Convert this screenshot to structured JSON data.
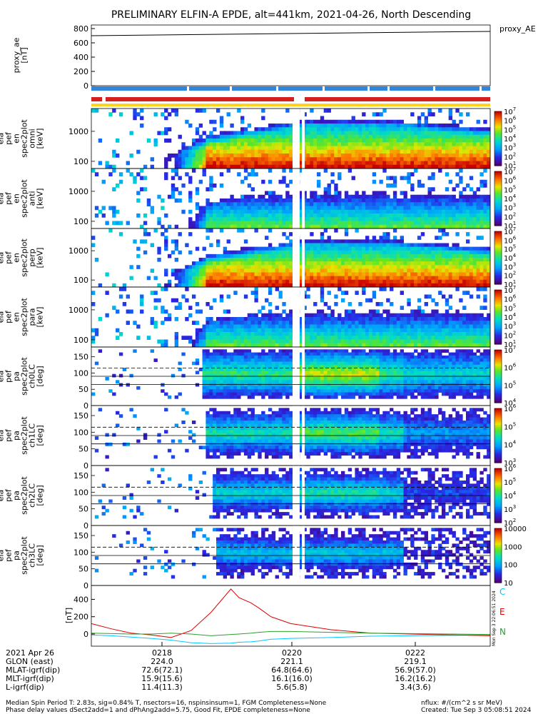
{
  "title": "PRELIMINARY ELFIN-A EPDE, alt=441km, 2021-04-26, North Descending",
  "colors": {
    "fgm_blue": "#2e86de",
    "epd_red": "#d62020",
    "epd_yellow": "#ffd21e",
    "comp_C": "#00c8ff",
    "comp_E": "#e00000",
    "comp_N": "#2ca02c"
  },
  "chart_data": [
    {
      "type": "line",
      "panel": "proxy_ae",
      "ylabel_lines": [
        "proxy_ae",
        "[nT]"
      ],
      "right_label": "proxy_AE",
      "yticks": [
        "800",
        "600",
        "400",
        "200",
        "0"
      ],
      "ylim": [
        0,
        850
      ],
      "x": [
        "02:16.5",
        "02:23.0"
      ],
      "series": [
        {
          "values": [
            700,
            760
          ]
        }
      ]
    },
    {
      "type": "heatmap",
      "panel": "en_spec2plot_omni",
      "ylabel_lines": [
        "ela",
        "pef",
        "en",
        "spec2plot",
        "omni",
        "[keV]"
      ],
      "yticks": [
        "1000",
        "100"
      ],
      "yscale": "log",
      "colorbar_label": "nflux",
      "colorbar_ticks": [
        "10^7",
        "10^6",
        "10^5",
        "10^4",
        "10^3",
        "10^2",
        "10^1"
      ]
    },
    {
      "type": "heatmap",
      "panel": "en_spec2plot_anti",
      "ylabel_lines": [
        "ela",
        "pef",
        "en",
        "spec2plot",
        "anti",
        "[keV]"
      ],
      "yticks": [
        "1000",
        "100"
      ],
      "yscale": "log",
      "colorbar_label": "nflux",
      "colorbar_ticks": [
        "10^7",
        "10^6",
        "10^5",
        "10^4",
        "10^3",
        "10^2",
        "10^1"
      ]
    },
    {
      "type": "heatmap",
      "panel": "en_spec2plot_perp",
      "ylabel_lines": [
        "ela",
        "pef",
        "en",
        "spec2plot",
        "perp",
        "[keV]"
      ],
      "yticks": [
        "1000",
        "100"
      ],
      "yscale": "log",
      "colorbar_label": "nflux",
      "colorbar_ticks": [
        "10^7",
        "10^6",
        "10^5",
        "10^4",
        "10^3",
        "10^2",
        "10^1"
      ]
    },
    {
      "type": "heatmap",
      "panel": "en_spec2plot_para",
      "ylabel_lines": [
        "ela",
        "pef",
        "en",
        "spec2plot",
        "para",
        "[keV]"
      ],
      "yticks": [
        "1000",
        "100"
      ],
      "yscale": "log",
      "colorbar_label": "nflux",
      "colorbar_ticks": [
        "10^7",
        "10^6",
        "10^5",
        "10^4",
        "10^3",
        "10^2",
        "10^1"
      ]
    },
    {
      "type": "heatmap",
      "panel": "pa_spec2plot_ch0LC",
      "ylabel_lines": [
        "ela",
        "pef",
        "pa",
        "spec2plot",
        "ch0LC",
        "[deg]"
      ],
      "yticks": [
        "150",
        "100",
        "50",
        "0"
      ],
      "ylim": [
        0,
        180
      ],
      "colorbar_label": "nflux",
      "colorbar_ticks": [
        "10^7",
        "10^6",
        "10^5",
        "10^4"
      ]
    },
    {
      "type": "heatmap",
      "panel": "pa_spec2plot_ch1LC",
      "ylabel_lines": [
        "ela",
        "pef",
        "pa",
        "spec2plot",
        "ch1LC",
        "[deg]"
      ],
      "yticks": [
        "150",
        "100",
        "50",
        "0"
      ],
      "ylim": [
        0,
        180
      ],
      "colorbar_label": "nflux",
      "colorbar_ticks": [
        "10^6",
        "10^5",
        "10^4",
        "10^3"
      ]
    },
    {
      "type": "heatmap",
      "panel": "pa_spec2plot_ch2LC",
      "ylabel_lines": [
        "ela",
        "pef",
        "pa",
        "spec2plot",
        "ch2LC",
        "[deg]"
      ],
      "yticks": [
        "150",
        "100",
        "50",
        "0"
      ],
      "ylim": [
        0,
        180
      ],
      "colorbar_label": "nflux",
      "colorbar_ticks": [
        "10^6",
        "10^5",
        "10^4",
        "10^3",
        "10^2"
      ]
    },
    {
      "type": "heatmap",
      "panel": "pa_spec2plot_ch3LC",
      "ylabel_lines": [
        "ela",
        "pef",
        "pa",
        "spec2plot",
        "ch3LC",
        "[deg]"
      ],
      "yticks": [
        "150",
        "100",
        "50",
        "0"
      ],
      "ylim": [
        0,
        180
      ],
      "colorbar_label": "nflux",
      "colorbar_ticks": [
        "10000",
        "1000",
        "100",
        "10"
      ]
    },
    {
      "type": "line",
      "panel": "fgm_dB",
      "ylabel": "[nT]",
      "yticks": [
        "400",
        "200",
        "0"
      ],
      "ylim": [
        -140,
        560
      ],
      "x": [
        0,
        5,
        10,
        15,
        20,
        25,
        30,
        35,
        37,
        40,
        42,
        45,
        50,
        60,
        70,
        80,
        90,
        100
      ],
      "series": [
        {
          "name": "C",
          "values": [
            -10,
            -20,
            -35,
            -50,
            -70,
            -100,
            -110,
            -105,
            -95,
            -90,
            -80,
            -60,
            -50,
            -40,
            -25,
            -20,
            -15,
            -10
          ]
        },
        {
          "name": "E",
          "values": [
            120,
            60,
            10,
            -10,
            -40,
            40,
            250,
            520,
            420,
            360,
            300,
            200,
            120,
            50,
            10,
            0,
            -10,
            -20
          ]
        },
        {
          "name": "N",
          "values": [
            10,
            5,
            0,
            0,
            10,
            0,
            -20,
            -5,
            0,
            10,
            20,
            30,
            30,
            20,
            10,
            5,
            0,
            -5
          ]
        }
      ]
    }
  ],
  "spectrogram_times": [
    "0218",
    "0220",
    "0222"
  ],
  "side_note": "Mon Sep  3 22:06:51 2024",
  "ephemeris": {
    "date": "2021 Apr 26",
    "rows": [
      {
        "label": "GLON (east)",
        "values": [
          "224.0",
          "221.1",
          "219.1"
        ]
      },
      {
        "label": "MLAT-igrf(dip)",
        "values": [
          "72.6(72.1)",
          "64.8(64.6)",
          "56.9(57.0)"
        ]
      },
      {
        "label": "MLT-igrf(dip)",
        "values": [
          "15.9(15.6)",
          "16.1(16.0)",
          "16.2(16.2)"
        ]
      },
      {
        "label": "L-igrf(dip)",
        "values": [
          "11.4(11.3)",
          "5.6(5.8)",
          "3.4(3.6)"
        ]
      }
    ]
  },
  "footer": {
    "line1": "Median Spin Period T: 2.83s, sig=0.84% T, nsectors=16, nspinsinsum=1, FGM Completeness=None",
    "line2": "Phase delay values dSect2add=1 and dPhAng2add=5.75, Good Fit, EPDE completeness=None",
    "units": "nflux: #/(cm^2 s sr MeV)",
    "created": "Created: Tue Sep  3 05:08:51 2024"
  }
}
